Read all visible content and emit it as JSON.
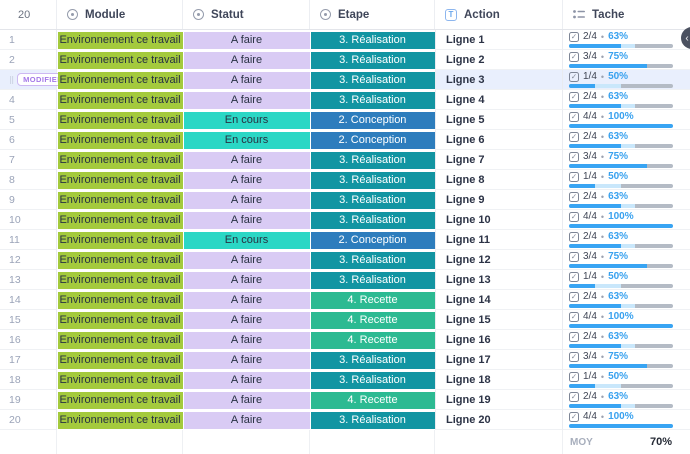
{
  "header": {
    "count": "20",
    "columns": [
      {
        "label": "Module",
        "icon": "dropdown-circle-icon"
      },
      {
        "label": "Statut",
        "icon": "dropdown-circle-icon"
      },
      {
        "label": "Etape",
        "icon": "dropdown-circle-icon"
      },
      {
        "label": "Action",
        "icon": "text-field-icon"
      },
      {
        "label": "Tache",
        "icon": "checklist-icon"
      }
    ]
  },
  "icons": {
    "checkbox_glyph": "✓",
    "text_field_glyph": "T",
    "drag_handle_glyph": "⣿",
    "dot_separator": "•",
    "fab_chevron": "‹"
  },
  "modifier_button_label": "MODIFIER",
  "footer": {
    "moy_label": "MOY",
    "moy_value": "70%"
  },
  "colors": {
    "module_bg": "#a4ca3d",
    "statut": {
      "A faire": "#d9cbf4",
      "En cours": "#2bd7c5"
    },
    "etape": {
      "3. Réalisation": "#1295a2",
      "2. Conception": "#2d7dbd",
      "4. Recette": "#2cba92"
    },
    "progress_done": "#38a4f3",
    "progress_partial": "#c9e7fb",
    "progress_track": "#b4bbc5",
    "percent_text": "#38a1ef",
    "selected_row_bg": "#e9effd"
  },
  "rows": [
    {
      "num": "1",
      "module": "Environnement ce travail",
      "statut": "A faire",
      "etape": "3. Réalisation",
      "action": "Ligne 1",
      "fraction": "2/4",
      "percent": "63%",
      "done_pct": 50,
      "total_pct": 63,
      "selected": false
    },
    {
      "num": "2",
      "module": "Environnement ce travail",
      "statut": "A faire",
      "etape": "3. Réalisation",
      "action": "Ligne 2",
      "fraction": "3/4",
      "percent": "75%",
      "done_pct": 75,
      "total_pct": 75,
      "selected": false
    },
    {
      "num": "3",
      "module": "Environnement ce travail",
      "statut": "A faire",
      "etape": "3. Réalisation",
      "action": "Ligne 3",
      "fraction": "1/4",
      "percent": "50%",
      "done_pct": 25,
      "total_pct": 50,
      "selected": true
    },
    {
      "num": "4",
      "module": "Environnement ce travail",
      "statut": "A faire",
      "etape": "3. Réalisation",
      "action": "Ligne 4",
      "fraction": "2/4",
      "percent": "63%",
      "done_pct": 50,
      "total_pct": 63,
      "selected": false
    },
    {
      "num": "5",
      "module": "Environnement ce travail",
      "statut": "En cours",
      "etape": "2. Conception",
      "action": "Ligne 5",
      "fraction": "4/4",
      "percent": "100%",
      "done_pct": 100,
      "total_pct": 100,
      "selected": false
    },
    {
      "num": "6",
      "module": "Environnement ce travail",
      "statut": "En cours",
      "etape": "2. Conception",
      "action": "Ligne 6",
      "fraction": "2/4",
      "percent": "63%",
      "done_pct": 50,
      "total_pct": 63,
      "selected": false
    },
    {
      "num": "7",
      "module": "Environnement ce travail",
      "statut": "A faire",
      "etape": "3. Réalisation",
      "action": "Ligne 7",
      "fraction": "3/4",
      "percent": "75%",
      "done_pct": 75,
      "total_pct": 75,
      "selected": false
    },
    {
      "num": "8",
      "module": "Environnement ce travail",
      "statut": "A faire",
      "etape": "3. Réalisation",
      "action": "Ligne 8",
      "fraction": "1/4",
      "percent": "50%",
      "done_pct": 25,
      "total_pct": 50,
      "selected": false
    },
    {
      "num": "9",
      "module": "Environnement ce travail",
      "statut": "A faire",
      "etape": "3. Réalisation",
      "action": "Ligne 9",
      "fraction": "2/4",
      "percent": "63%",
      "done_pct": 50,
      "total_pct": 63,
      "selected": false
    },
    {
      "num": "10",
      "module": "Environnement ce travail",
      "statut": "A faire",
      "etape": "3. Réalisation",
      "action": "Ligne 10",
      "fraction": "4/4",
      "percent": "100%",
      "done_pct": 100,
      "total_pct": 100,
      "selected": false
    },
    {
      "num": "11",
      "module": "Environnement ce travail",
      "statut": "En cours",
      "etape": "2. Conception",
      "action": "Ligne 11",
      "fraction": "2/4",
      "percent": "63%",
      "done_pct": 50,
      "total_pct": 63,
      "selected": false
    },
    {
      "num": "12",
      "module": "Environnement ce travail",
      "statut": "A faire",
      "etape": "3. Réalisation",
      "action": "Ligne 12",
      "fraction": "3/4",
      "percent": "75%",
      "done_pct": 75,
      "total_pct": 75,
      "selected": false
    },
    {
      "num": "13",
      "module": "Environnement ce travail",
      "statut": "A faire",
      "etape": "3. Réalisation",
      "action": "Ligne 13",
      "fraction": "1/4",
      "percent": "50%",
      "done_pct": 25,
      "total_pct": 50,
      "selected": false
    },
    {
      "num": "14",
      "module": "Environnement ce travail",
      "statut": "A faire",
      "etape": "4. Recette",
      "action": "Ligne 14",
      "fraction": "2/4",
      "percent": "63%",
      "done_pct": 50,
      "total_pct": 63,
      "selected": false
    },
    {
      "num": "15",
      "module": "Environnement ce travail",
      "statut": "A faire",
      "etape": "4. Recette",
      "action": "Ligne 15",
      "fraction": "4/4",
      "percent": "100%",
      "done_pct": 100,
      "total_pct": 100,
      "selected": false
    },
    {
      "num": "16",
      "module": "Environnement ce travail",
      "statut": "A faire",
      "etape": "4. Recette",
      "action": "Ligne 16",
      "fraction": "2/4",
      "percent": "63%",
      "done_pct": 50,
      "total_pct": 63,
      "selected": false
    },
    {
      "num": "17",
      "module": "Environnement ce travail",
      "statut": "A faire",
      "etape": "3. Réalisation",
      "action": "Ligne 17",
      "fraction": "3/4",
      "percent": "75%",
      "done_pct": 75,
      "total_pct": 75,
      "selected": false
    },
    {
      "num": "18",
      "module": "Environnement ce travail",
      "statut": "A faire",
      "etape": "3. Réalisation",
      "action": "Ligne 18",
      "fraction": "1/4",
      "percent": "50%",
      "done_pct": 25,
      "total_pct": 50,
      "selected": false
    },
    {
      "num": "19",
      "module": "Environnement ce travail",
      "statut": "A faire",
      "etape": "4. Recette",
      "action": "Ligne 19",
      "fraction": "2/4",
      "percent": "63%",
      "done_pct": 50,
      "total_pct": 63,
      "selected": false
    },
    {
      "num": "20",
      "module": "Environnement ce travail",
      "statut": "A faire",
      "etape": "3. Réalisation",
      "action": "Ligne 20",
      "fraction": "4/4",
      "percent": "100%",
      "done_pct": 100,
      "total_pct": 100,
      "selected": false
    }
  ]
}
